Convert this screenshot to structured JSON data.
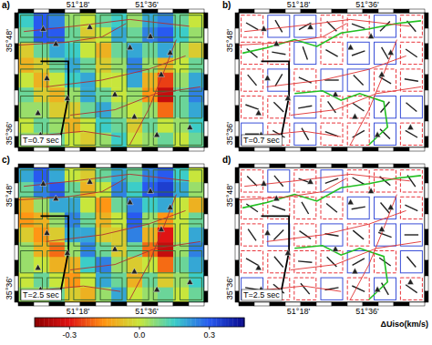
{
  "chart_data": [
    {
      "type": "heatmap",
      "title": "a)",
      "annotation": "T=0.7 sec",
      "xlim": [
        51.04,
        51.85
      ],
      "ylim": [
        35.57,
        35.86
      ],
      "xticks": [
        {
          "value": 51.3,
          "label": "51°18'"
        },
        {
          "value": 51.6,
          "label": "51°36'"
        }
      ],
      "yticks": [
        {
          "value": 35.6,
          "label": "35°36'"
        },
        {
          "value": 35.8,
          "label": "35°48'"
        }
      ],
      "x": [
        51.074,
        51.141,
        51.209,
        51.276,
        51.344,
        51.411,
        51.479,
        51.546,
        51.614,
        51.681,
        51.749,
        51.816
      ],
      "y": [
        35.844,
        35.812,
        35.779,
        35.747,
        35.715,
        35.683,
        35.651,
        35.618,
        35.586
      ],
      "values": [
        [
          0.15,
          0.3,
          0.25,
          0.05,
          0.0,
          0.1,
          0.15,
          0.05,
          0.2,
          0.25,
          0.1,
          0.0
        ],
        [
          0.1,
          0.3,
          0.3,
          0.1,
          -0.05,
          0.0,
          0.2,
          0.1,
          0.25,
          0.3,
          0.15,
          0.05
        ],
        [
          -0.05,
          0.1,
          0.2,
          0.15,
          0.0,
          -0.1,
          0.1,
          0.2,
          0.1,
          0.2,
          0.05,
          -0.05
        ],
        [
          -0.1,
          -0.05,
          0.1,
          0.2,
          0.1,
          -0.05,
          0.05,
          0.25,
          0.05,
          -0.1,
          0.0,
          0.1
        ],
        [
          0.0,
          -0.1,
          0.0,
          0.15,
          0.2,
          0.0,
          0.0,
          0.2,
          -0.1,
          -0.25,
          0.05,
          0.2
        ],
        [
          0.1,
          -0.05,
          -0.1,
          0.05,
          0.2,
          0.1,
          0.0,
          0.05,
          -0.15,
          -0.35,
          0.1,
          0.25
        ],
        [
          0.05,
          0.05,
          -0.05,
          -0.05,
          0.1,
          0.2,
          0.05,
          0.0,
          0.05,
          -0.2,
          0.1,
          0.2
        ],
        [
          0.0,
          0.1,
          0.05,
          -0.1,
          0.0,
          0.15,
          0.1,
          -0.05,
          0.1,
          0.0,
          0.05,
          0.15
        ],
        [
          0.05,
          0.05,
          0.1,
          0.0,
          -0.05,
          0.05,
          0.15,
          0.0,
          0.05,
          0.1,
          0.0,
          0.1
        ]
      ]
    },
    {
      "type": "anisotropy",
      "title": "b)",
      "annotation": "T=0.7 sec",
      "xlim": [
        51.04,
        51.85
      ],
      "ylim": [
        35.57,
        35.86
      ],
      "xticks": [
        {
          "value": 51.3,
          "label": "51°18'"
        },
        {
          "value": 51.6,
          "label": "51°36'"
        }
      ],
      "yticks": [
        {
          "value": 35.6,
          "label": "35°36'"
        },
        {
          "value": 35.8,
          "label": "35°48'"
        }
      ],
      "x": [
        51.098,
        51.214,
        51.329,
        51.445,
        51.561,
        51.677,
        51.792
      ],
      "y": [
        35.831,
        35.773,
        35.715,
        35.657,
        35.599
      ],
      "angles": [
        [
          120,
          150,
          60,
          135,
          110,
          45,
          140
        ],
        [
          130,
          100,
          160,
          120,
          70,
          150,
          125
        ],
        [
          140,
          30,
          115,
          90,
          135,
          120,
          100
        ],
        [
          110,
          135,
          80,
          145,
          125,
          40,
          130
        ],
        [
          90,
          120,
          150,
          110,
          60,
          135,
          120
        ]
      ],
      "colors": [
        [
          "#e8333a",
          "#3a4fd8",
          "#3a4fd8",
          "#e8333a",
          "#e8333a",
          "#3a4fd8",
          "#e8333a"
        ],
        [
          "#e8333a",
          "#e8333a",
          "#3a4fd8",
          "#e8333a",
          "#3a4fd8",
          "#3a4fd8",
          "#e8333a"
        ],
        [
          "#e8333a",
          "#3a4fd8",
          "#e8333a",
          "#3a4fd8",
          "#3a4fd8",
          "#e8333a",
          "#e8333a"
        ],
        [
          "#e8333a",
          "#e8333a",
          "#3a4fd8",
          "#e8333a",
          "#e8333a",
          "#3a4fd8",
          "#3a4fd8"
        ],
        [
          "#3a4fd8",
          "#e8333a",
          "#3a4fd8",
          "#e8333a",
          "#e8333a",
          "#3a4fd8",
          "#e8333a"
        ]
      ]
    },
    {
      "type": "heatmap",
      "title": "c)",
      "annotation": "T=2.5 sec",
      "xlim": [
        51.04,
        51.85
      ],
      "ylim": [
        35.57,
        35.86
      ],
      "xticks": [
        {
          "value": 51.3,
          "label": "51°18'"
        },
        {
          "value": 51.6,
          "label": "51°36'"
        }
      ],
      "yticks": [
        {
          "value": 35.6,
          "label": "35°36'"
        },
        {
          "value": 35.8,
          "label": "35°48'"
        }
      ],
      "x": [
        51.074,
        51.141,
        51.209,
        51.276,
        51.344,
        51.411,
        51.479,
        51.546,
        51.614,
        51.681,
        51.749,
        51.816
      ],
      "y": [
        35.844,
        35.812,
        35.779,
        35.747,
        35.715,
        35.683,
        35.651,
        35.618,
        35.586
      ],
      "values": [
        [
          0.2,
          0.3,
          0.2,
          0.0,
          -0.05,
          0.1,
          0.2,
          0.1,
          0.25,
          0.3,
          0.15,
          0.0
        ],
        [
          0.1,
          0.25,
          0.3,
          0.1,
          -0.1,
          0.0,
          0.25,
          0.15,
          0.3,
          0.35,
          0.2,
          0.05
        ],
        [
          -0.1,
          0.05,
          0.2,
          0.2,
          0.0,
          -0.15,
          0.1,
          0.25,
          0.15,
          0.2,
          0.0,
          -0.1
        ],
        [
          -0.15,
          -0.1,
          0.05,
          0.25,
          0.1,
          -0.1,
          0.0,
          0.3,
          0.05,
          -0.15,
          0.0,
          0.1
        ],
        [
          -0.05,
          -0.15,
          -0.05,
          0.2,
          0.2,
          -0.05,
          -0.05,
          0.25,
          -0.1,
          -0.3,
          0.0,
          0.2
        ],
        [
          0.05,
          -0.1,
          -0.2,
          0.05,
          0.25,
          0.1,
          -0.05,
          0.1,
          -0.2,
          -0.35,
          0.05,
          0.25
        ],
        [
          0.05,
          0.0,
          -0.1,
          -0.1,
          0.15,
          0.25,
          0.05,
          -0.05,
          0.0,
          -0.2,
          0.1,
          0.2
        ],
        [
          0.0,
          0.1,
          0.0,
          -0.15,
          0.0,
          0.2,
          0.1,
          -0.1,
          0.1,
          -0.05,
          0.05,
          0.15
        ],
        [
          0.05,
          0.05,
          0.1,
          -0.05,
          -0.1,
          0.05,
          0.2,
          0.0,
          0.05,
          0.1,
          0.0,
          0.1
        ]
      ]
    },
    {
      "type": "anisotropy",
      "title": "d)",
      "annotation": "T=2.5 sec",
      "xlim": [
        51.04,
        51.85
      ],
      "ylim": [
        35.57,
        35.86
      ],
      "xticks": [
        {
          "value": 51.3,
          "label": "51°18'"
        },
        {
          "value": 51.6,
          "label": "51°36'"
        }
      ],
      "yticks": [
        {
          "value": 35.6,
          "label": "35°36'"
        },
        {
          "value": 35.8,
          "label": "35°48'"
        }
      ],
      "x": [
        51.098,
        51.214,
        51.329,
        51.445,
        51.561,
        51.677,
        51.792
      ],
      "y": [
        35.831,
        35.773,
        35.715,
        35.657,
        35.599
      ],
      "angles": [
        [
          135,
          140,
          110,
          70,
          120,
          130,
          145
        ],
        [
          125,
          110,
          150,
          130,
          80,
          140,
          115
        ],
        [
          145,
          45,
          125,
          100,
          130,
          110,
          90
        ],
        [
          120,
          140,
          95,
          135,
          60,
          125,
          140
        ],
        [
          100,
          130,
          140,
          80,
          115,
          150,
          125
        ]
      ],
      "colors": [
        [
          "#e8333a",
          "#3a4fd8",
          "#e8333a",
          "#3a4fd8",
          "#e8333a",
          "#e8333a",
          "#e8333a"
        ],
        [
          "#e8333a",
          "#e8333a",
          "#e8333a",
          "#e8333a",
          "#3a4fd8",
          "#3a4fd8",
          "#e8333a"
        ],
        [
          "#e8333a",
          "#3a4fd8",
          "#e8333a",
          "#3a4fd8",
          "#e8333a",
          "#3a4fd8",
          "#3a4fd8"
        ],
        [
          "#e8333a",
          "#e8333a",
          "#e8333a",
          "#e8333a",
          "#3a4fd8",
          "#e8333a",
          "#3a4fd8"
        ],
        [
          "#3a4fd8",
          "#e8333a",
          "#e8333a",
          "#3a4fd8",
          "#e8333a",
          "#3a4fd8",
          "#e8333a"
        ]
      ]
    }
  ],
  "stations": {
    "lon": [
      51.149,
      51.204,
      51.352,
      51.527,
      51.616,
      51.702,
      51.165,
      51.254,
      51.461,
      51.126,
      51.137,
      51.546,
      51.644,
      51.788,
      51.663
    ],
    "lat": [
      35.825,
      35.793,
      35.829,
      35.785,
      35.809,
      35.774,
      35.719,
      35.676,
      35.684,
      35.644,
      35.597,
      35.636,
      35.597,
      35.613,
      35.727
    ]
  },
  "colorbar": {
    "range": [
      -0.45,
      0.45
    ],
    "ticks": [
      -0.3,
      {
        "value": 0,
        "label": "0.0"
      },
      0.3
    ],
    "label": "ΔUiso(km/s)"
  }
}
